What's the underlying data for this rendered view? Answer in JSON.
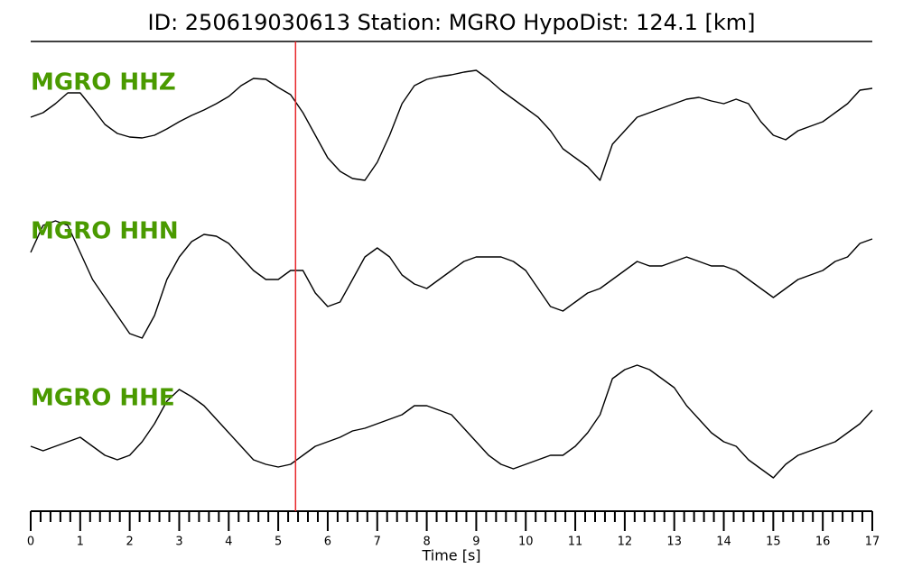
{
  "chart_data": {
    "type": "line",
    "title": "ID: 250619030613   Station: MGRO   HypoDist:   124.1 [km]",
    "xlabel": "Time [s]",
    "xlim": [
      0,
      17
    ],
    "xticks": [
      0,
      1,
      2,
      3,
      4,
      5,
      6,
      7,
      8,
      9,
      10,
      11,
      12,
      13,
      14,
      15,
      16,
      17
    ],
    "xminorticks": [
      0.2,
      0.4,
      0.6,
      0.8,
      1.2,
      1.4,
      1.6,
      1.8,
      2.2,
      2.4,
      2.6,
      2.8,
      3.2,
      3.4,
      3.6,
      3.8,
      4.2,
      4.4,
      4.6,
      4.8,
      5.2,
      5.4,
      5.6,
      5.8,
      6.2,
      6.4,
      6.6,
      6.8,
      7.2,
      7.4,
      7.6,
      7.8,
      8.2,
      8.4,
      8.6,
      8.8,
      9.2,
      9.4,
      9.6,
      9.8,
      10.2,
      10.4,
      10.6,
      10.8,
      11.2,
      11.4,
      11.6,
      11.8,
      12.2,
      12.4,
      12.6,
      12.8,
      13.2,
      13.4,
      13.6,
      13.8,
      14.2,
      14.4,
      14.6,
      14.8,
      15.2,
      15.4,
      15.6,
      15.8,
      16.2,
      16.4,
      16.6,
      16.8
    ],
    "ylim": [
      -90,
      90
    ],
    "marker_x": 5.35,
    "marker_color": "#e8262a",
    "label_color": "#4a9a00",
    "x": [
      0,
      0.25,
      0.5,
      0.75,
      1,
      1.25,
      1.5,
      1.75,
      2,
      2.25,
      2.5,
      2.75,
      3,
      3.25,
      3.5,
      3.75,
      4,
      4.25,
      4.5,
      4.75,
      5,
      5.25,
      5.5,
      5.75,
      6,
      6.25,
      6.5,
      6.75,
      7,
      7.25,
      7.5,
      7.75,
      8,
      8.25,
      8.5,
      8.75,
      9,
      9.25,
      9.5,
      9.75,
      10,
      10.25,
      10.5,
      10.75,
      11,
      11.25,
      11.5,
      11.75,
      12,
      12.25,
      12.5,
      12.75,
      13,
      13.25,
      13.5,
      13.75,
      14,
      14.25,
      14.5,
      14.75,
      15,
      15.25,
      15.5,
      15.75,
      16,
      16.25,
      16.5,
      16.75,
      17
    ],
    "series": [
      {
        "name": "MGRO HHZ",
        "color": "#000000",
        "values": [
          10,
          15,
          25,
          37,
          37,
          20,
          2,
          -8,
          -12,
          -13,
          -10,
          -3,
          5,
          12,
          18,
          25,
          33,
          45,
          53,
          52,
          43,
          35,
          15,
          -10,
          -35,
          -50,
          -58,
          -60,
          -40,
          -10,
          25,
          45,
          52,
          55,
          57,
          60,
          62,
          52,
          40,
          30,
          20,
          10,
          -5,
          -25,
          -35,
          -45,
          -60,
          -20,
          -5,
          10,
          15,
          20,
          25,
          30,
          32,
          28,
          25,
          30,
          25,
          5,
          -10,
          -15,
          -5,
          0,
          5,
          15,
          25,
          40,
          42
        ]
      },
      {
        "name": "MGRO HHN",
        "color": "#000000",
        "values": [
          25,
          55,
          60,
          55,
          25,
          -5,
          -25,
          -45,
          -65,
          -70,
          -45,
          -5,
          20,
          37,
          45,
          43,
          35,
          20,
          5,
          -5,
          -5,
          5,
          5,
          -20,
          -35,
          -30,
          -5,
          20,
          30,
          20,
          0,
          -10,
          -15,
          -5,
          5,
          15,
          20,
          20,
          20,
          15,
          5,
          -15,
          -35,
          -40,
          -30,
          -20,
          -15,
          -5,
          5,
          15,
          10,
          10,
          15,
          20,
          15,
          10,
          10,
          5,
          -5,
          -15,
          -25,
          -15,
          -5,
          0,
          5,
          15,
          20,
          35,
          40
        ]
      },
      {
        "name": "MGRO HHE",
        "color": "#000000",
        "values": [
          -5,
          -10,
          -5,
          0,
          5,
          -5,
          -15,
          -20,
          -15,
          0,
          20,
          45,
          58,
          50,
          40,
          25,
          10,
          -5,
          -20,
          -25,
          -28,
          -25,
          -15,
          -5,
          0,
          5,
          12,
          15,
          20,
          25,
          30,
          40,
          40,
          35,
          30,
          15,
          0,
          -15,
          -25,
          -30,
          -25,
          -20,
          -15,
          -15,
          -5,
          10,
          30,
          70,
          80,
          85,
          80,
          70,
          60,
          40,
          25,
          10,
          0,
          -5,
          -20,
          -30,
          -40,
          -25,
          -15,
          -10,
          -5,
          0,
          10,
          20,
          35
        ]
      }
    ]
  }
}
